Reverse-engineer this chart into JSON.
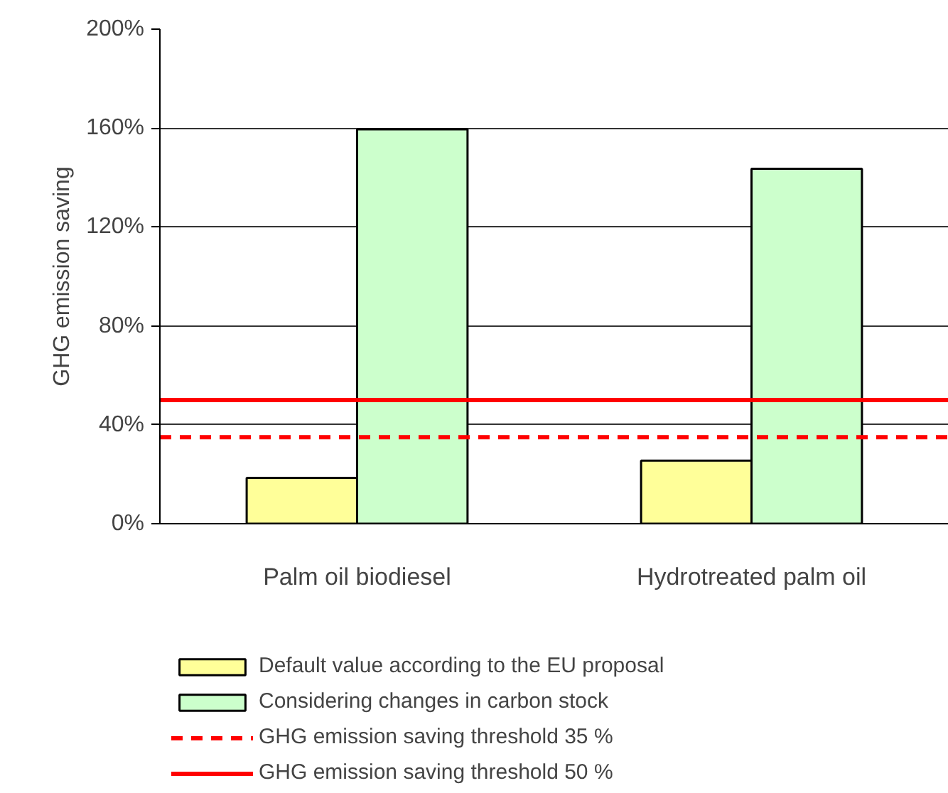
{
  "chart_data": {
    "type": "bar",
    "ylabel": "GHG emission saving",
    "categories": [
      "Palm oil biodiesel",
      "Hydrotreated palm oil"
    ],
    "series": [
      {
        "name": "Default value according to the EU proposal",
        "color": "#ffff99",
        "values": [
          18.5,
          25.5
        ]
      },
      {
        "name": "Considering changes in carbon stock",
        "color": "#ccffcc",
        "values": [
          159.5,
          143.5
        ]
      }
    ],
    "ylim": [
      0,
      200
    ],
    "yticks": [
      {
        "value": 0,
        "label": "0%"
      },
      {
        "value": 40,
        "label": "40%"
      },
      {
        "value": 80,
        "label": "80%"
      },
      {
        "value": 120,
        "label": "120%"
      },
      {
        "value": 160,
        "label": "160%"
      },
      {
        "value": 200,
        "label": "200%"
      }
    ],
    "ref_lines": [
      {
        "axis": "y",
        "value": 35,
        "label": "GHG emission saving threshold 35 %",
        "color": "#ff0000",
        "line_style": "dashed"
      },
      {
        "axis": "y",
        "value": 50,
        "label": "GHG emission saving threshold 50 %",
        "color": "#ff0000",
        "line_style": "solid"
      }
    ],
    "grid": "y",
    "legend": "bottom"
  }
}
